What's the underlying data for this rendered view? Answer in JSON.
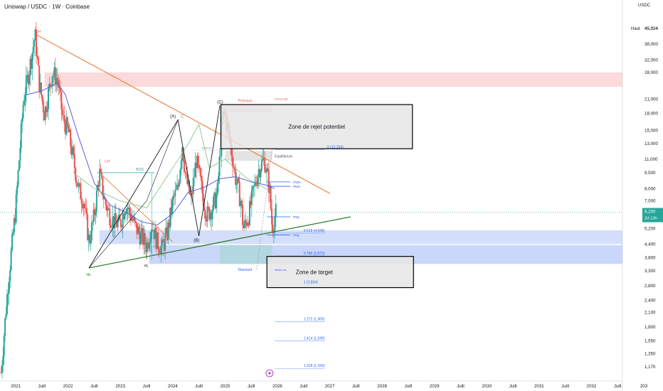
{
  "header": {
    "symbol": "Uniswap / USDC · 1W · Coinbase",
    "currency": "USDC"
  },
  "price_label": {
    "value": "6,200",
    "countdown": "2d 13h"
  },
  "high_label": {
    "tag": "Haut",
    "value": "45,024"
  },
  "colors": {
    "up": "#26a69a",
    "down": "#ef5350",
    "ma": "#5b5fd6",
    "ma2": "#7fbf7f",
    "trend_up": "#2e7d32",
    "trend_down": "#e67e3a",
    "supply": "#f7c6c6",
    "demand": "#9db7f5",
    "accent": "#2962ff"
  },
  "annotations": {
    "zone_reject": "Zone de rejet potentiel",
    "zone_target": "Zone de target",
    "premium": "Premium",
    "discount": "Discount",
    "equilibrium": "Equilibrium",
    "wave_a": "(A)",
    "wave_b": "(B)",
    "wave_c": "(C)",
    "c_small": "C",
    "hl_left": "HL",
    "hl_mid": "HL",
    "lh_top": "LH",
    "lh_mid": "LH",
    "bos": "BOS",
    "choch": "CHoCH",
    "fib_0": "0 (12,194)",
    "fib_618": "0.618 (4,948)",
    "fib_786": "0.786 (3,873)",
    "fib_1": "1 (2,834)",
    "fib_1272": "1.272 (1,905)",
    "fib_1414": "1.414 (1,549)",
    "fib_1618": "1.618 (1,150)",
    "pwh": "PWH",
    "pmh": "PMH",
    "pwl": "PWL",
    "pml": "PML",
    "strong_high": "Strong High",
    "weak_low": "Weak Low"
  },
  "chart_data": {
    "type": "candlestick",
    "title": "Uniswap / USDC · 1W · Coinbase",
    "y_scale": "log",
    "y_ticks": [
      "45,024",
      "38,000",
      "32,000",
      "28,000",
      "21,000",
      "18,000",
      "15,000",
      "13,000",
      "11,000",
      "9,500",
      "8,000",
      "7,000",
      "6,200",
      "5,200",
      "4,400",
      "3,800",
      "3,300",
      "2,800",
      "2,400",
      "2,100",
      "1,800",
      "1,550",
      "1,350",
      "1,170"
    ],
    "y_tick_values": [
      45.024,
      38,
      32,
      28,
      21,
      18,
      15,
      13,
      11,
      9.5,
      8,
      7,
      6.2,
      5.2,
      4.4,
      3.8,
      3.3,
      2.8,
      2.4,
      2.1,
      1.8,
      1.55,
      1.35,
      1.17
    ],
    "x_ticks": [
      "2021",
      "Juill",
      "2022",
      "Juill",
      "2023",
      "Juill",
      "2024",
      "Juill",
      "2025",
      "Juill",
      "2026",
      "Juill",
      "2027",
      "Juill",
      "2028",
      "Juill",
      "2029",
      "Juill",
      "2030",
      "Juill",
      "2031",
      "Juill",
      "2032",
      "Juill",
      "203"
    ],
    "x_range": [
      2020.7,
      2033.0
    ],
    "price_path": [
      [
        2020.72,
        1.1
      ],
      [
        2020.85,
        2.8
      ],
      [
        2021.0,
        6.5
      ],
      [
        2021.15,
        21
      ],
      [
        2021.3,
        33
      ],
      [
        2021.37,
        42
      ],
      [
        2021.45,
        25
      ],
      [
        2021.55,
        18
      ],
      [
        2021.7,
        28
      ],
      [
        2021.8,
        26
      ],
      [
        2021.9,
        17
      ],
      [
        2022.0,
        15
      ],
      [
        2022.1,
        11
      ],
      [
        2022.2,
        8
      ],
      [
        2022.3,
        7
      ],
      [
        2022.4,
        4.5
      ],
      [
        2022.5,
        6
      ],
      [
        2022.6,
        9.5
      ],
      [
        2022.7,
        7
      ],
      [
        2022.8,
        6
      ],
      [
        2022.9,
        5.5
      ],
      [
        2023.0,
        5.5
      ],
      [
        2023.1,
        6.8
      ],
      [
        2023.2,
        6
      ],
      [
        2023.3,
        5.2
      ],
      [
        2023.4,
        4.8
      ],
      [
        2023.5,
        4.3
      ],
      [
        2023.6,
        5.5
      ],
      [
        2023.7,
        4.5
      ],
      [
        2023.8,
        4.2
      ],
      [
        2023.9,
        5
      ],
      [
        2024.0,
        7
      ],
      [
        2024.1,
        8
      ],
      [
        2024.18,
        13
      ],
      [
        2024.25,
        9
      ],
      [
        2024.35,
        7
      ],
      [
        2024.45,
        11
      ],
      [
        2024.55,
        8
      ],
      [
        2024.65,
        6
      ],
      [
        2024.75,
        6.5
      ],
      [
        2024.85,
        7.5
      ],
      [
        2024.95,
        17
      ],
      [
        2025.0,
        18
      ],
      [
        2025.1,
        13
      ],
      [
        2025.2,
        9
      ],
      [
        2025.3,
        7
      ],
      [
        2025.35,
        5.2
      ],
      [
        2025.45,
        6
      ],
      [
        2025.55,
        8
      ],
      [
        2025.65,
        10
      ],
      [
        2025.75,
        11
      ],
      [
        2025.85,
        8
      ],
      [
        2025.9,
        5.2
      ],
      [
        2025.97,
        6.2
      ]
    ],
    "moving_average": [
      [
        2021.2,
        22
      ],
      [
        2021.5,
        23
      ],
      [
        2021.8,
        25
      ],
      [
        2021.95,
        22
      ],
      [
        2022.2,
        14
      ],
      [
        2022.5,
        8.5
      ],
      [
        2022.8,
        6.7
      ],
      [
        2023.1,
        6.2
      ],
      [
        2023.4,
        5.6
      ],
      [
        2023.7,
        5.4
      ],
      [
        2024.0,
        6.1
      ],
      [
        2024.3,
        7.7
      ],
      [
        2024.6,
        8.1
      ],
      [
        2024.9,
        8.9
      ],
      [
        2025.2,
        9.1
      ],
      [
        2025.5,
        8.6
      ],
      [
        2025.8,
        8.3
      ],
      [
        2025.95,
        8
      ]
    ],
    "ma2": [
      [
        2022.1,
        9.5
      ],
      [
        2022.5,
        8
      ],
      [
        2023.0,
        7
      ],
      [
        2023.5,
        6.5
      ],
      [
        2024.0,
        10
      ],
      [
        2024.3,
        13
      ],
      [
        2024.5,
        16
      ],
      [
        2024.7,
        10
      ],
      [
        2025.0,
        11
      ],
      [
        2025.4,
        9
      ],
      [
        2025.9,
        7.7
      ]
    ],
    "fib_levels": [
      {
        "label": "0 (12,194)",
        "value": 12.194
      },
      {
        "label": "0.618 (4,948)",
        "value": 4.948
      },
      {
        "label": "0.786 (3,873)",
        "value": 3.873
      },
      {
        "label": "1 (2,834)",
        "value": 2.834
      },
      {
        "label": "1.272 (1,905)",
        "value": 1.905
      },
      {
        "label": "1.414 (1,549)",
        "value": 1.549
      },
      {
        "label": "1.618 (1,150)",
        "value": 1.15
      }
    ],
    "zones": {
      "supply": [
        24,
        28
      ],
      "rejection": [
        12.3,
        19.8
      ],
      "target": [
        2.75,
        3.85
      ],
      "demand_upper": [
        4.4,
        5.1
      ],
      "demand_lower": [
        3.55,
        4.35
      ]
    },
    "trendlines": {
      "descending": [
        [
          2021.4,
          42
        ],
        [
          2027.0,
          7.6
        ]
      ],
      "descending_inner": [
        [
          2022.6,
          9.5
        ],
        [
          2024.0,
          4.5
        ]
      ],
      "ascending": [
        [
          2022.4,
          3.4
        ],
        [
          2027.4,
          5.9
        ]
      ]
    },
    "current_price": 6.2,
    "ath": 45.024
  }
}
